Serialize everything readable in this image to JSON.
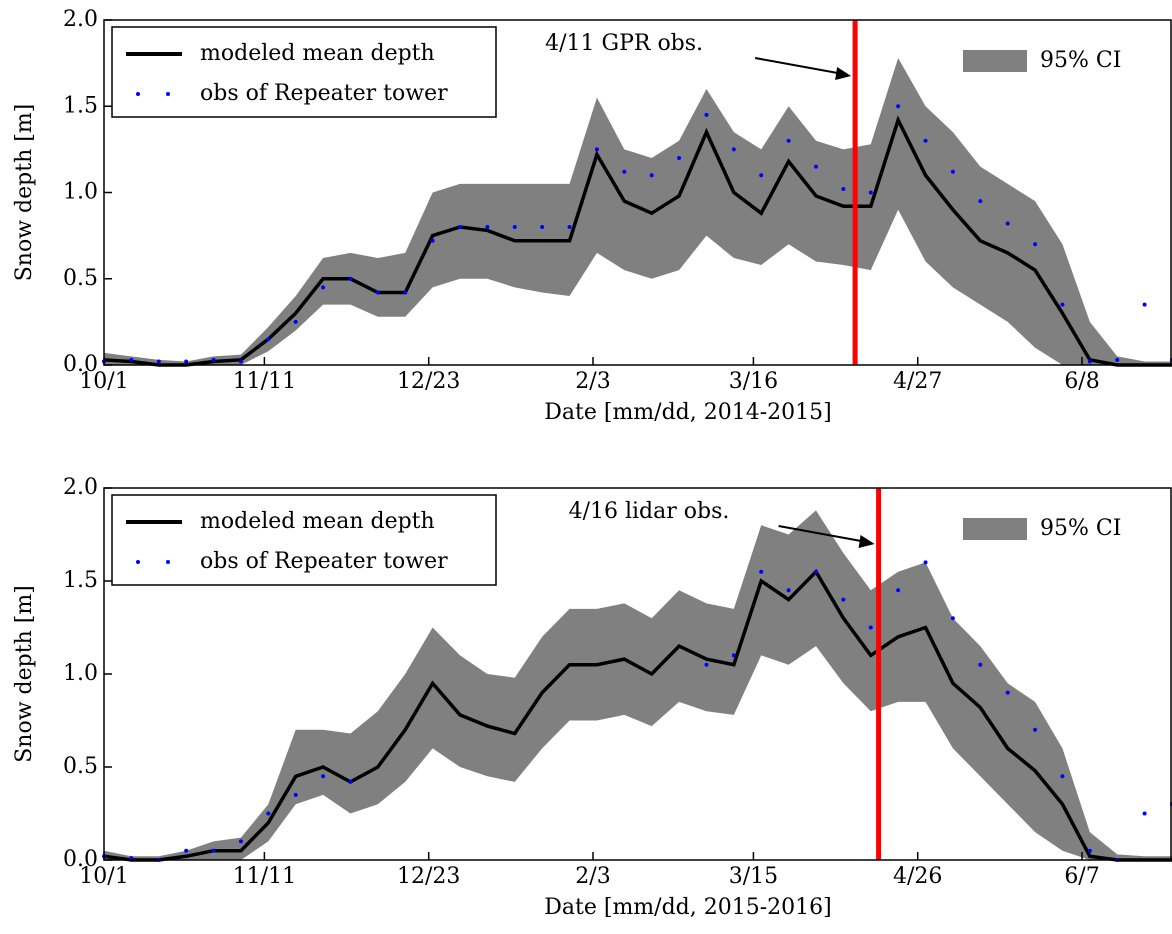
{
  "chart_data": [
    {
      "type": "line",
      "xlabel": "Date [mm/dd, 2014-2015]",
      "ylabel": "Snow depth [m]",
      "x": [
        0,
        7,
        14,
        21,
        28,
        35,
        42,
        49,
        56,
        63,
        70,
        77,
        84,
        91,
        98,
        105,
        112,
        119,
        126,
        133,
        140,
        147,
        154,
        161,
        168,
        175,
        182,
        189,
        196,
        203,
        210,
        217,
        224,
        231,
        238,
        245,
        252,
        259,
        266,
        273
      ],
      "xlim": [
        0,
        273
      ],
      "xticks": [
        {
          "value": 0,
          "label": "10/1"
        },
        {
          "value": 41,
          "label": "11/11"
        },
        {
          "value": 83,
          "label": "12/23"
        },
        {
          "value": 125,
          "label": "2/3"
        },
        {
          "value": 166,
          "label": "3/16"
        },
        {
          "value": 208,
          "label": "4/27"
        },
        {
          "value": 250,
          "label": "6/8"
        }
      ],
      "ylim": [
        0,
        2
      ],
      "yticks": [
        {
          "value": 0,
          "label": "0.0"
        },
        0.5,
        {
          "value": 1,
          "label": "1.0"
        },
        1.5,
        {
          "value": 2,
          "label": "2.0"
        }
      ],
      "series": [
        {
          "name": "modeled mean depth",
          "color": "#000000",
          "style": "line",
          "values": [
            0.03,
            0.02,
            0,
            0,
            0.02,
            0.03,
            0.15,
            0.3,
            0.5,
            0.5,
            0.42,
            0.42,
            0.75,
            0.8,
            0.78,
            0.72,
            0.72,
            0.72,
            1.22,
            0.95,
            0.88,
            0.98,
            1.35,
            1.0,
            0.88,
            1.18,
            0.98,
            0.92,
            0.92,
            1.42,
            1.1,
            0.9,
            0.72,
            0.65,
            0.55,
            0.3,
            0.03,
            0,
            0,
            0
          ]
        },
        {
          "name": "obs of Repeater tower",
          "color": "#0000ff",
          "style": "dots",
          "values": [
            0.02,
            0.03,
            0.02,
            0.02,
            0.03,
            0.02,
            0.15,
            0.25,
            0.45,
            0.5,
            0.42,
            0.42,
            0.72,
            0.8,
            0.8,
            0.8,
            0.8,
            0.8,
            1.25,
            1.12,
            1.1,
            1.2,
            1.45,
            1.25,
            1.1,
            1.3,
            1.15,
            1.02,
            1.0,
            1.5,
            1.3,
            1.12,
            0.95,
            0.82,
            0.7,
            0.35,
            0.02,
            0.03,
            0.35,
            0.03
          ]
        }
      ],
      "band": {
        "name": "95% CI",
        "color": "#808080",
        "lower": [
          0,
          0,
          0,
          0,
          0,
          0,
          0.08,
          0.2,
          0.35,
          0.35,
          0.28,
          0.28,
          0.45,
          0.5,
          0.5,
          0.45,
          0.42,
          0.4,
          0.65,
          0.55,
          0.5,
          0.55,
          0.75,
          0.62,
          0.58,
          0.7,
          0.6,
          0.58,
          0.55,
          0.9,
          0.6,
          0.45,
          0.35,
          0.25,
          0.1,
          0,
          0,
          0,
          0,
          0
        ],
        "upper": [
          0.07,
          0.05,
          0.03,
          0.02,
          0.05,
          0.06,
          0.22,
          0.4,
          0.62,
          0.65,
          0.62,
          0.65,
          1.0,
          1.05,
          1.05,
          1.05,
          1.05,
          1.05,
          1.55,
          1.25,
          1.2,
          1.3,
          1.6,
          1.35,
          1.25,
          1.5,
          1.3,
          1.25,
          1.28,
          1.78,
          1.5,
          1.35,
          1.15,
          1.05,
          0.95,
          0.7,
          0.25,
          0.05,
          0.02,
          0.02
        ]
      },
      "annotation": {
        "text": "4/11 GPR obs.",
        "x": 192,
        "color": "#ff0000"
      }
    },
    {
      "type": "line",
      "xlabel": "Date [mm/dd, 2015-2016]",
      "ylabel": "Snow depth [m]",
      "x": [
        0,
        7,
        14,
        21,
        28,
        35,
        42,
        49,
        56,
        63,
        70,
        77,
        84,
        91,
        98,
        105,
        112,
        119,
        126,
        133,
        140,
        147,
        154,
        161,
        168,
        175,
        182,
        189,
        196,
        203,
        210,
        217,
        224,
        231,
        238,
        245,
        252,
        259,
        266,
        273
      ],
      "xlim": [
        0,
        273
      ],
      "xticks": [
        {
          "value": 0,
          "label": "10/1"
        },
        {
          "value": 41,
          "label": "11/11"
        },
        {
          "value": 83,
          "label": "12/23"
        },
        {
          "value": 125,
          "label": "2/3"
        },
        {
          "value": 166,
          "label": "3/15"
        },
        {
          "value": 208,
          "label": "4/26"
        },
        {
          "value": 250,
          "label": "6/7"
        }
      ],
      "ylim": [
        0,
        2
      ],
      "yticks": [
        {
          "value": 0,
          "label": "0.0"
        },
        0.5,
        {
          "value": 1,
          "label": "1.0"
        },
        1.5,
        {
          "value": 2,
          "label": "2.0"
        }
      ],
      "series": [
        {
          "name": "modeled mean depth",
          "color": "#000000",
          "style": "line",
          "values": [
            0.02,
            0,
            0,
            0.02,
            0.05,
            0.05,
            0.2,
            0.45,
            0.5,
            0.42,
            0.5,
            0.7,
            0.95,
            0.78,
            0.72,
            0.68,
            0.9,
            1.05,
            1.05,
            1.08,
            1.0,
            1.15,
            1.08,
            1.05,
            1.5,
            1.4,
            1.55,
            1.3,
            1.1,
            1.2,
            1.25,
            0.95,
            0.82,
            0.6,
            0.48,
            0.3,
            0.02,
            0,
            0,
            0
          ]
        },
        {
          "name": "obs of Repeater tower",
          "color": "#0000ff",
          "style": "dots",
          "values": [
            0.02,
            0.01,
            0,
            0.05,
            0.05,
            0.1,
            0.25,
            0.35,
            0.45,
            0.42,
            null,
            null,
            null,
            null,
            null,
            null,
            null,
            null,
            null,
            null,
            null,
            null,
            1.05,
            1.1,
            1.55,
            1.45,
            1.55,
            1.4,
            1.25,
            1.45,
            1.6,
            1.3,
            1.05,
            0.9,
            0.7,
            0.45,
            0.05,
            0,
            0.25,
            0.3
          ]
        }
      ],
      "band": {
        "name": "95% CI",
        "color": "#808080",
        "lower": [
          0,
          0,
          0,
          0,
          0,
          0,
          0.1,
          0.3,
          0.35,
          0.25,
          0.3,
          0.42,
          0.6,
          0.5,
          0.45,
          0.42,
          0.6,
          0.75,
          0.75,
          0.78,
          0.72,
          0.85,
          0.8,
          0.78,
          1.1,
          1.05,
          1.15,
          0.95,
          0.8,
          0.85,
          0.85,
          0.6,
          0.45,
          0.3,
          0.15,
          0.05,
          0,
          0,
          0,
          0
        ],
        "upper": [
          0.05,
          0.02,
          0.02,
          0.05,
          0.1,
          0.12,
          0.3,
          0.7,
          0.7,
          0.68,
          0.8,
          1.0,
          1.25,
          1.1,
          1.0,
          0.98,
          1.2,
          1.35,
          1.35,
          1.38,
          1.3,
          1.45,
          1.38,
          1.35,
          1.8,
          1.75,
          1.88,
          1.65,
          1.45,
          1.55,
          1.6,
          1.3,
          1.15,
          0.95,
          0.85,
          0.6,
          0.15,
          0.03,
          0.02,
          0.02
        ]
      },
      "annotation": {
        "text": "4/16 lidar obs.",
        "x": 198,
        "color": "#ff0000"
      }
    }
  ]
}
